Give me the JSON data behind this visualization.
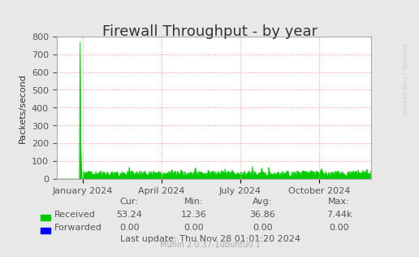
{
  "title": "Firewall Throughput - by year",
  "ylabel": "Packets/second",
  "background_color": "#e8e8e8",
  "plot_bg_color": "#ffffff",
  "grid_color": "#ff9999",
  "grid_linestyle": ":",
  "yticks": [
    0,
    100,
    200,
    300,
    400,
    500,
    600,
    700,
    800
  ],
  "ylim": [
    0,
    800
  ],
  "xtick_labels": [
    "January 2024",
    "April 2024",
    "July 2024",
    "October 2024"
  ],
  "line_color_received": "#00cc00",
  "line_color_forwarded": "#0000ff",
  "legend_entries": [
    "Received",
    "Forwarded"
  ],
  "stats_cur_received": "53.24",
  "stats_min_received": "12.36",
  "stats_avg_received": "36.86",
  "stats_max_received": "7.44k",
  "stats_cur_forwarded": "0.00",
  "stats_min_forwarded": "0.00",
  "stats_avg_forwarded": "0.00",
  "stats_max_forwarded": "0.00",
  "last_update": "Last update: Thu Nov 28 01:01:20 2024",
  "munin_version": "Munin 2.0.37-1ubuntu0.1",
  "rrdtool_text": "RRDTOOL / TOBI OETIKER",
  "title_fontsize": 13,
  "axis_fontsize": 8,
  "stats_fontsize": 8,
  "small_fontsize": 7
}
